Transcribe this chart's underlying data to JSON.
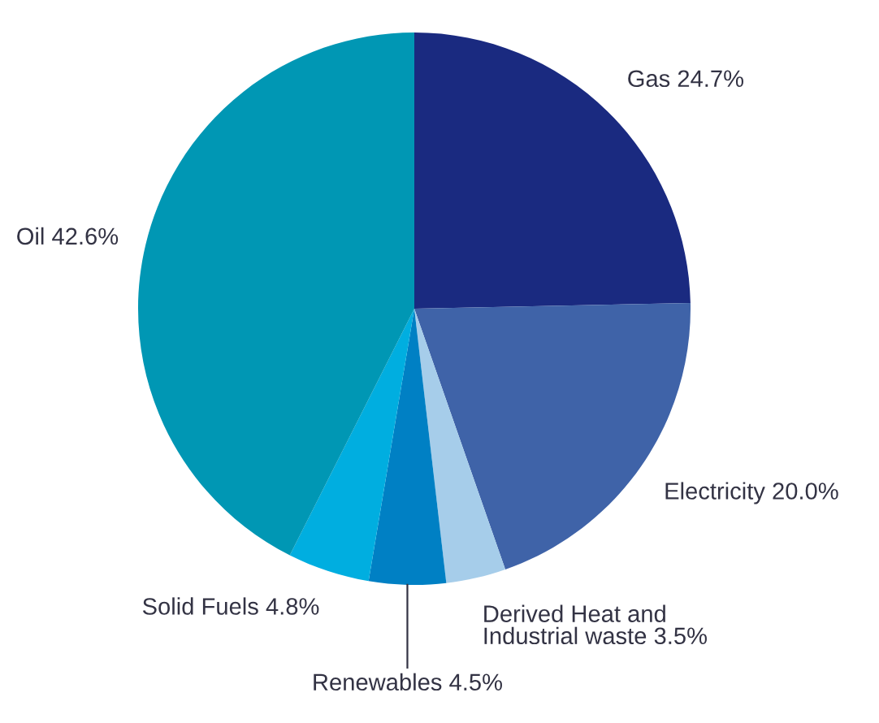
{
  "chart_data": {
    "type": "pie",
    "categories": [
      "Gas",
      "Electricity",
      "Derived Heat and\nIndustrial waste",
      "Renewables",
      "Solid Fuels",
      "Oil"
    ],
    "values": [
      24.7,
      20.0,
      3.5,
      4.5,
      4.8,
      42.6
    ],
    "colors": [
      "#1a2a80",
      "#3f63a8",
      "#a6cdea",
      "#0080c4",
      "#00aee0",
      "#0097b4"
    ],
    "value_labels": [
      "24.7%",
      "20.0%",
      "3.5%",
      "4.5%",
      "4.8%",
      "42.6%"
    ]
  }
}
